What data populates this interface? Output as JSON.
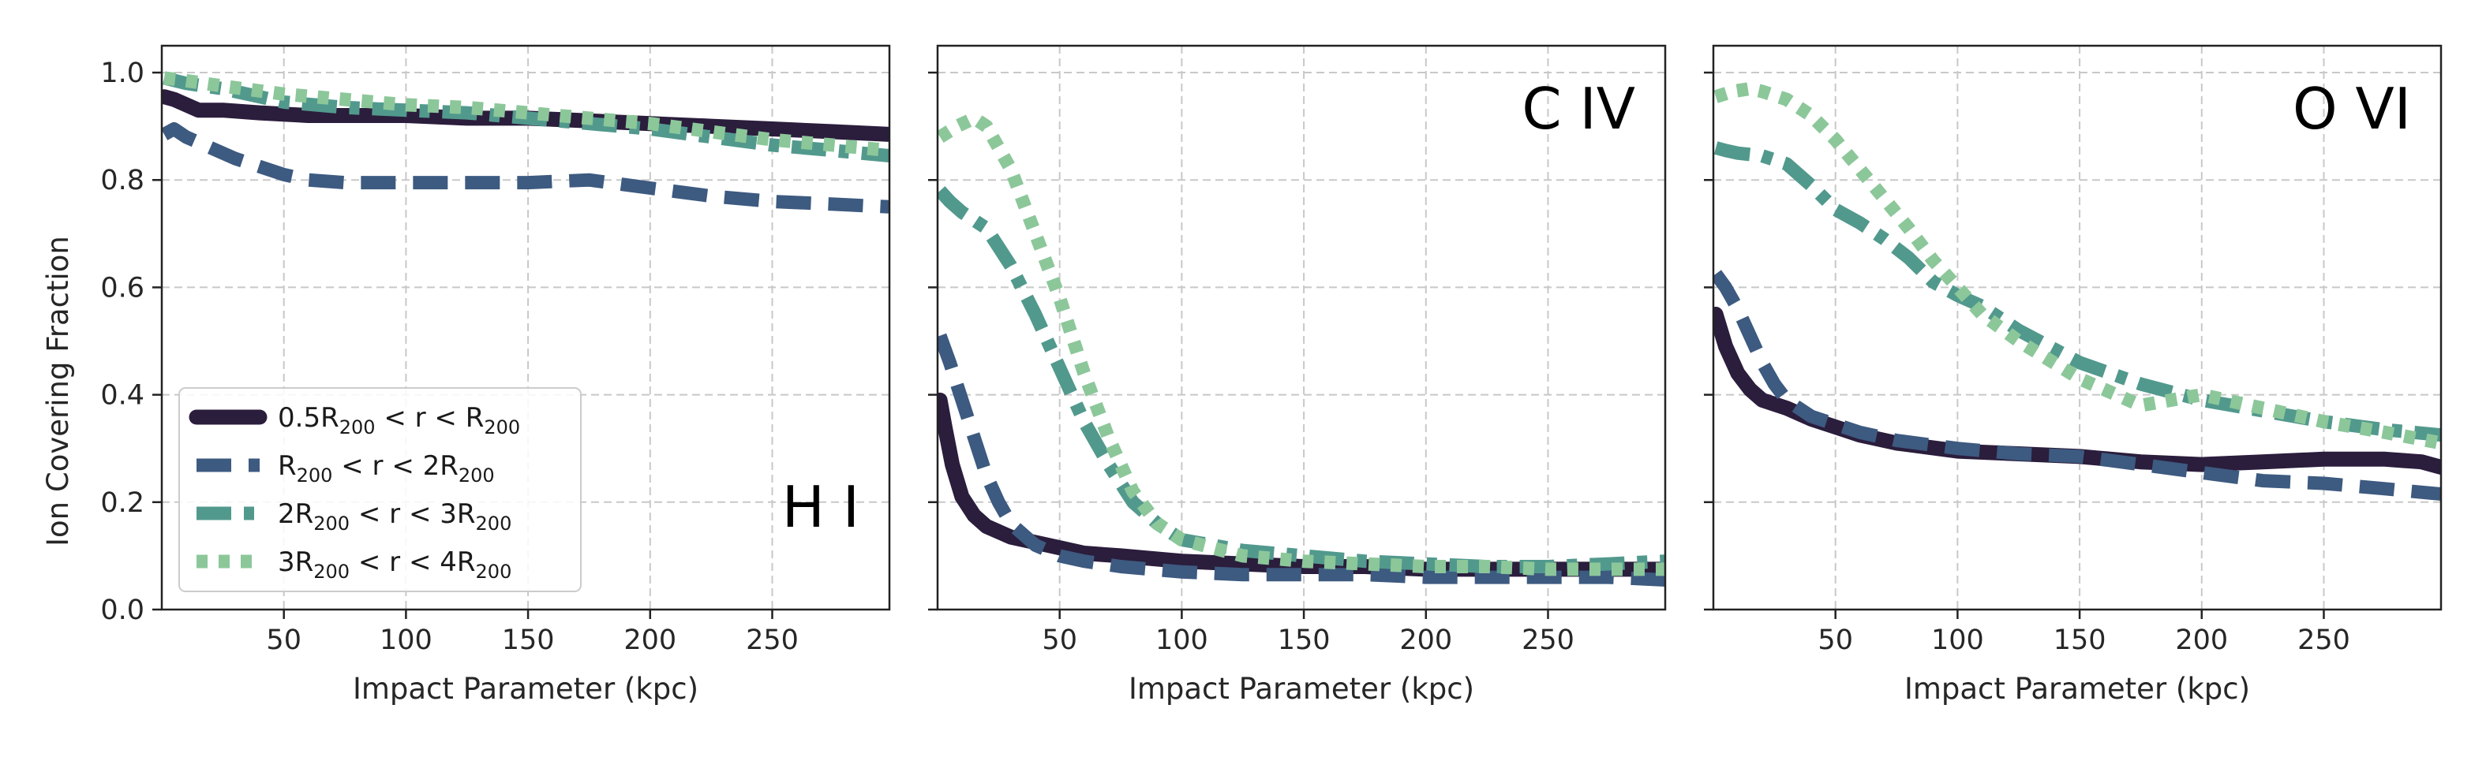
{
  "colors": {
    "series": [
      "#2b1d3c",
      "#3d5a80",
      "#52998d",
      "#8cc79a"
    ],
    "grid": "#c8c8c8",
    "axis": "#222222",
    "text": "#262626"
  },
  "chart_data": {
    "type": "line",
    "ylabel": "Ion Covering Fraction",
    "xlabel": "Impact Parameter (kpc)",
    "xlim": [
      0,
      298
    ],
    "ylim": [
      0,
      1.05
    ],
    "xticks": [
      "50",
      "100",
      "150",
      "200",
      "250"
    ],
    "yticks": [
      "0.0",
      "0.2",
      "0.4",
      "0.6",
      "0.8",
      "1.0"
    ],
    "grid": true,
    "legend": {
      "placement": "lower-left",
      "entries": [
        {
          "pre": "0.5R",
          "sub1": "200",
          "mid": " < r < R",
          "sub2": "200",
          "style": "solid"
        },
        {
          "pre": "R",
          "sub1": "200",
          "mid": " < r < 2R",
          "sub2": "200",
          "style": "dashed"
        },
        {
          "pre": "2R",
          "sub1": "200",
          "mid": " < r < 3R",
          "sub2": "200",
          "style": "dashdot"
        },
        {
          "pre": "3R",
          "sub1": "200",
          "mid": " < r < 4R",
          "sub2": "200",
          "style": "dotted"
        }
      ]
    },
    "panels": [
      {
        "ion": "H I",
        "ion_label_position": "bottom-right",
        "series": [
          {
            "name": "0.5R200 < r < R200",
            "x": [
              1,
              5,
              15,
              25,
              40,
              60,
              80,
              100,
              125,
              150,
              175,
              200,
              225,
              250,
              275,
              298
            ],
            "y": [
              0.955,
              0.95,
              0.93,
              0.93,
              0.925,
              0.92,
              0.92,
              0.92,
              0.915,
              0.915,
              0.91,
              0.905,
              0.9,
              0.895,
              0.89,
              0.885
            ]
          },
          {
            "name": "R200 < r < 2R200",
            "x": [
              1,
              5,
              10,
              20,
              30,
              40,
              50,
              60,
              75,
              100,
              125,
              150,
              175,
              200,
              225,
              250,
              275,
              298
            ],
            "y": [
              0.885,
              0.895,
              0.88,
              0.86,
              0.84,
              0.825,
              0.81,
              0.8,
              0.795,
              0.795,
              0.795,
              0.795,
              0.8,
              0.785,
              0.77,
              0.76,
              0.755,
              0.75
            ]
          },
          {
            "name": "2R200 < r < 3R200",
            "x": [
              1,
              10,
              25,
              50,
              75,
              100,
              125,
              150,
              175,
              200,
              225,
              250,
              275,
              298
            ],
            "y": [
              0.99,
              0.98,
              0.97,
              0.945,
              0.935,
              0.93,
              0.925,
              0.915,
              0.905,
              0.895,
              0.88,
              0.865,
              0.855,
              0.845
            ]
          },
          {
            "name": "3R200 < r < 4R200",
            "x": [
              1,
              10,
              25,
              50,
              75,
              100,
              125,
              150,
              175,
              200,
              225,
              250,
              275,
              298
            ],
            "y": [
              0.99,
              0.985,
              0.975,
              0.96,
              0.95,
              0.94,
              0.935,
              0.925,
              0.915,
              0.905,
              0.89,
              0.875,
              0.865,
              0.855
            ]
          }
        ]
      },
      {
        "ion": "C IV",
        "ion_label_position": "top-right",
        "series": [
          {
            "name": "0.5R200 < r < R200",
            "x": [
              1,
              3,
              6,
              10,
              15,
              20,
              30,
              40,
              50,
              60,
              75,
              100,
              125,
              150,
              175,
              200,
              225,
              250,
              275,
              298
            ],
            "y": [
              0.39,
              0.34,
              0.27,
              0.21,
              0.175,
              0.155,
              0.135,
              0.125,
              0.115,
              0.105,
              0.1,
              0.09,
              0.085,
              0.08,
              0.08,
              0.075,
              0.075,
              0.075,
              0.075,
              0.075
            ]
          },
          {
            "name": "R200 < r < 2R200",
            "x": [
              1,
              5,
              10,
              15,
              20,
              25,
              30,
              40,
              50,
              60,
              75,
              100,
              125,
              150,
              175,
              200,
              225,
              250,
              275,
              298
            ],
            "y": [
              0.51,
              0.46,
              0.39,
              0.32,
              0.25,
              0.2,
              0.16,
              0.12,
              0.1,
              0.09,
              0.08,
              0.07,
              0.065,
              0.065,
              0.065,
              0.06,
              0.06,
              0.06,
              0.06,
              0.055
            ]
          },
          {
            "name": "2R200 < r < 3R200",
            "x": [
              1,
              5,
              10,
              20,
              30,
              40,
              50,
              60,
              70,
              80,
              90,
              100,
              125,
              150,
              175,
              200,
              225,
              250,
              275,
              298
            ],
            "y": [
              0.78,
              0.76,
              0.74,
              0.71,
              0.64,
              0.55,
              0.45,
              0.35,
              0.27,
              0.2,
              0.16,
              0.13,
              0.11,
              0.1,
              0.09,
              0.085,
              0.08,
              0.08,
              0.085,
              0.09
            ]
          },
          {
            "name": "3R200 < r < 4R200",
            "x": [
              1,
              8,
              15,
              20,
              30,
              40,
              50,
              60,
              70,
              80,
              90,
              100,
              125,
              150,
              175,
              200,
              225,
              250,
              275,
              298
            ],
            "y": [
              0.88,
              0.9,
              0.915,
              0.9,
              0.82,
              0.7,
              0.58,
              0.44,
              0.32,
              0.22,
              0.16,
              0.13,
              0.1,
              0.09,
              0.085,
              0.08,
              0.08,
              0.075,
              0.075,
              0.075
            ]
          }
        ]
      },
      {
        "ion": "O VI",
        "ion_label_position": "top-right",
        "series": [
          {
            "name": "0.5R200 < r < R200",
            "x": [
              1,
              5,
              10,
              15,
              20,
              30,
              40,
              50,
              60,
              75,
              100,
              125,
              150,
              175,
              200,
              225,
              250,
              275,
              290,
              298
            ],
            "y": [
              0.55,
              0.49,
              0.44,
              0.41,
              0.39,
              0.375,
              0.355,
              0.34,
              0.325,
              0.31,
              0.295,
              0.29,
              0.285,
              0.275,
              0.27,
              0.275,
              0.28,
              0.28,
              0.275,
              0.265
            ]
          },
          {
            "name": "R200 < r < 2R200",
            "x": [
              1,
              5,
              10,
              15,
              20,
              25,
              30,
              40,
              50,
              60,
              75,
              100,
              125,
              150,
              175,
              200,
              225,
              250,
              275,
              298
            ],
            "y": [
              0.625,
              0.6,
              0.56,
              0.51,
              0.46,
              0.42,
              0.39,
              0.36,
              0.345,
              0.33,
              0.315,
              0.3,
              0.29,
              0.285,
              0.27,
              0.255,
              0.24,
              0.235,
              0.225,
              0.215
            ]
          },
          {
            "name": "2R200 < r < 3R200",
            "x": [
              1,
              5,
              10,
              20,
              30,
              40,
              50,
              60,
              70,
              80,
              90,
              100,
              110,
              125,
              150,
              175,
              200,
              225,
              250,
              275,
              298
            ],
            "y": [
              0.86,
              0.855,
              0.85,
              0.845,
              0.83,
              0.79,
              0.745,
              0.72,
              0.69,
              0.655,
              0.61,
              0.585,
              0.565,
              0.52,
              0.46,
              0.42,
              0.39,
              0.37,
              0.35,
              0.335,
              0.325
            ]
          },
          {
            "name": "3R200 < r < 4R200",
            "x": [
              1,
              8,
              15,
              20,
              30,
              40,
              50,
              60,
              70,
              80,
              90,
              100,
              110,
              125,
              150,
              175,
              200,
              225,
              250,
              275,
              298
            ],
            "y": [
              0.955,
              0.965,
              0.97,
              0.965,
              0.95,
              0.92,
              0.875,
              0.82,
              0.765,
              0.71,
              0.65,
              0.6,
              0.55,
              0.5,
              0.43,
              0.38,
              0.4,
              0.375,
              0.35,
              0.33,
              0.31
            ]
          }
        ]
      }
    ]
  }
}
